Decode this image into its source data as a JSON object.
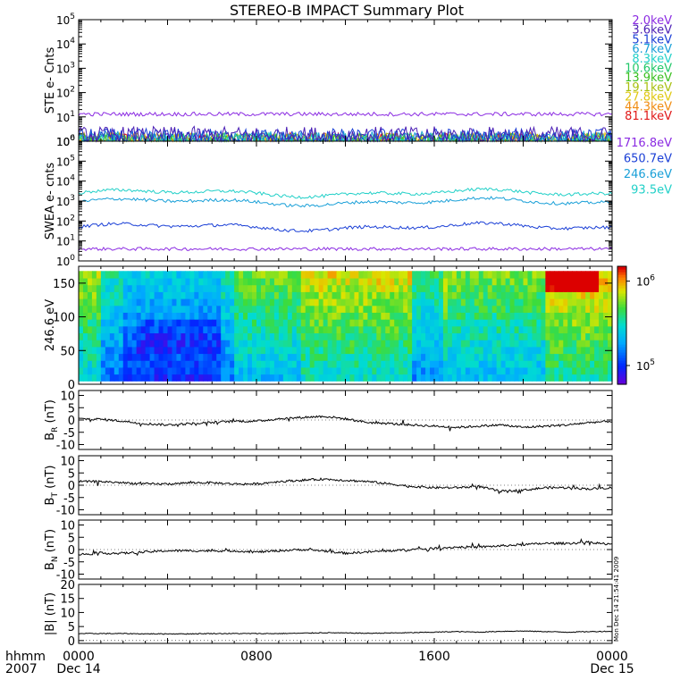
{
  "title": "STEREO-B IMPACT Summary Plot",
  "time_axis": {
    "corner_top": "hhmm",
    "corner_bottom": "2007",
    "ticks": [
      {
        "h": 0,
        "top": "0000",
        "bottom": "Dec 14"
      },
      {
        "h": 8,
        "top": "0800",
        "bottom": ""
      },
      {
        "h": 16,
        "top": "1600",
        "bottom": ""
      },
      {
        "h": 24,
        "top": "0000",
        "bottom": "Dec 15"
      }
    ]
  },
  "side_label": "Mon Dec 14 21:54:41 2009",
  "colors": {
    "ste": [
      "#8b2be2",
      "#4b1fb5",
      "#1a3fd6",
      "#1aa0d8",
      "#22d0c8",
      "#22c86a",
      "#3ac020",
      "#a8c010",
      "#e0c810",
      "#f08c10",
      "#e01818"
    ],
    "swea": [
      "#8b2be2",
      "#1a3fd6",
      "#1aa0d8",
      "#22d0c8"
    ]
  },
  "chart_data": [
    {
      "type": "line",
      "panel": "ste",
      "ylabel": "STE e- Cnts",
      "yscale": "log",
      "ylim": [
        1,
        100000
      ],
      "ytick_labels": [
        {
          "base": "10",
          "exp": "0",
          "v": 1
        },
        {
          "base": "10",
          "exp": "1",
          "v": 10
        },
        {
          "base": "10",
          "exp": "2",
          "v": 100
        },
        {
          "base": "10",
          "exp": "3",
          "v": 1000
        },
        {
          "base": "10",
          "exp": "4",
          "v": 10000
        },
        {
          "base": "10",
          "exp": "5",
          "v": 100000
        }
      ],
      "legend_position": "right",
      "series": [
        {
          "name": "2.0keV",
          "level": 13
        },
        {
          "name": "3.6keV",
          "level": 1.8
        },
        {
          "name": "5.1keV",
          "level": 1.5
        },
        {
          "name": "6.7keV",
          "level": 1.2
        },
        {
          "name": "8.3keV",
          "level": 1.0
        },
        {
          "name": "10.6keV",
          "level": 1.0
        },
        {
          "name": "13.9keV",
          "level": 1.0
        },
        {
          "name": "19.1keV",
          "level": 1.0
        },
        {
          "name": "27.8keV",
          "level": 1.0
        },
        {
          "name": "44.3keV",
          "level": 1.0
        },
        {
          "name": "81.1keV",
          "level": 1.0
        }
      ]
    },
    {
      "type": "line",
      "panel": "swea",
      "ylabel": "SWEA e- cnts",
      "yscale": "log",
      "ylim": [
        1,
        1000000
      ],
      "ytick_labels": [
        {
          "base": "10",
          "exp": "0",
          "v": 1
        },
        {
          "base": "10",
          "exp": "1",
          "v": 10
        },
        {
          "base": "10",
          "exp": "2",
          "v": 100
        },
        {
          "base": "10",
          "exp": "3",
          "v": 1000
        },
        {
          "base": "10",
          "exp": "4",
          "v": 10000
        },
        {
          "base": "10",
          "exp": "5",
          "v": 100000
        },
        {
          "base": "10",
          "exp": "6",
          "v": 1000000
        }
      ],
      "legend_position": "right",
      "series": [
        {
          "name": "1716.8eV",
          "level": 4
        },
        {
          "name": "650.7eV",
          "level": 50
        },
        {
          "name": "246.6eV",
          "level": 900
        },
        {
          "name": "93.5eV",
          "level": 2500
        }
      ]
    },
    {
      "type": "heatmap",
      "panel": "pad",
      "ylabel": "246.6 eV",
      "ylim": [
        0,
        175
      ],
      "yticks": [
        0,
        50,
        100,
        150
      ],
      "colorbar": {
        "scale": "log",
        "range": [
          60000,
          1500000
        ],
        "tick_labels": [
          {
            "base": "10",
            "exp": "5",
            "v": 100000
          },
          {
            "base": "10",
            "exp": "6",
            "v": 1000000
          }
        ]
      }
    },
    {
      "type": "line",
      "panel": "br",
      "ylabel": {
        "main": "B",
        "sub": "R",
        "unit": " (nT)"
      },
      "ylim": [
        -12,
        12
      ],
      "yticks": [
        -10,
        -5,
        0,
        5,
        10
      ],
      "x": [
        0,
        1,
        2,
        3,
        4,
        5,
        6,
        7,
        8,
        9,
        10,
        11,
        12,
        13,
        14,
        15,
        16,
        17,
        18,
        19,
        20,
        21,
        22,
        23,
        24
      ],
      "values": [
        0.5,
        0.3,
        -0.5,
        -1.5,
        -2.0,
        -1.5,
        -1.0,
        -0.5,
        -0.5,
        0.5,
        1.0,
        1.5,
        0.5,
        -1.0,
        -1.5,
        -2.0,
        -2.5,
        -3.0,
        -2.5,
        -2.0,
        -3.0,
        -2.5,
        -2.0,
        -1.0,
        -0.5
      ]
    },
    {
      "type": "line",
      "panel": "bt",
      "ylabel": {
        "main": "B",
        "sub": "T",
        "unit": " (nT)"
      },
      "ylim": [
        -12,
        12
      ],
      "yticks": [
        -10,
        -5,
        0,
        5,
        10
      ],
      "x": [
        0,
        1,
        2,
        3,
        4,
        5,
        6,
        7,
        8,
        9,
        10,
        11,
        12,
        13,
        14,
        15,
        16,
        17,
        18,
        19,
        20,
        21,
        22,
        23,
        24
      ],
      "values": [
        1.5,
        1.5,
        1.0,
        0.5,
        0.5,
        1.0,
        1.0,
        0.5,
        0.5,
        1.5,
        2.0,
        2.5,
        2.0,
        1.5,
        0.5,
        -0.5,
        -1.0,
        -1.0,
        -0.5,
        -2.5,
        -2.0,
        -1.0,
        -1.0,
        -1.5,
        -1.0
      ]
    },
    {
      "type": "line",
      "panel": "bn",
      "ylabel": {
        "main": "B",
        "sub": "N",
        "unit": " (nT)"
      },
      "ylim": [
        -12,
        12
      ],
      "yticks": [
        -10,
        -5,
        0,
        5,
        10
      ],
      "x": [
        0,
        1,
        2,
        3,
        4,
        5,
        6,
        7,
        8,
        9,
        10,
        11,
        12,
        13,
        14,
        15,
        16,
        17,
        18,
        19,
        20,
        21,
        22,
        23,
        24
      ],
      "values": [
        -2.0,
        -1.5,
        -1.5,
        -1.0,
        -0.5,
        -0.5,
        -0.5,
        -0.5,
        -1.0,
        -0.5,
        0.0,
        -0.5,
        -1.5,
        -1.0,
        -0.5,
        0.0,
        0.5,
        1.0,
        1.0,
        1.5,
        2.0,
        2.5,
        2.5,
        3.0,
        2.0
      ]
    },
    {
      "type": "line",
      "panel": "bmag",
      "ylabel": {
        "main": "|B|",
        "sub": "",
        "unit": " (nT)"
      },
      "ylim": [
        -1,
        20
      ],
      "yticks": [
        0,
        5,
        10,
        15,
        20
      ],
      "x": [
        0,
        1,
        2,
        3,
        4,
        5,
        6,
        7,
        8,
        9,
        10,
        11,
        12,
        13,
        14,
        15,
        16,
        17,
        18,
        19,
        20,
        21,
        22,
        23,
        24
      ],
      "values": [
        2.5,
        2.5,
        2.5,
        2.4,
        2.4,
        2.4,
        2.5,
        2.5,
        2.5,
        2.5,
        2.6,
        2.8,
        2.7,
        2.6,
        2.7,
        2.8,
        3.0,
        3.2,
        3.0,
        3.3,
        3.4,
        3.2,
        3.0,
        3.2,
        3.3
      ]
    }
  ]
}
